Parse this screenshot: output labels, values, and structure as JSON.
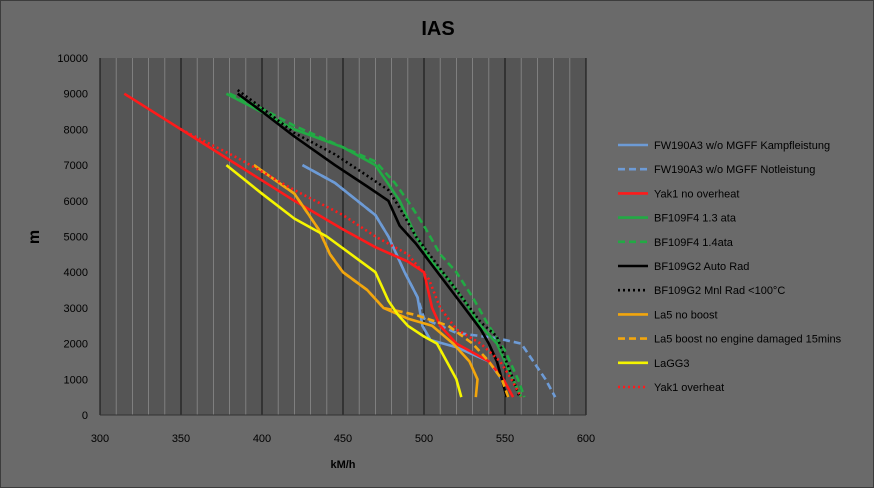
{
  "chart_data": {
    "type": "line",
    "title": "IAS",
    "xlabel": "kM/h",
    "ylabel": "m",
    "xlim": [
      300,
      600
    ],
    "ylim": [
      0,
      10000
    ],
    "xticks": [
      300,
      350,
      400,
      450,
      500,
      550,
      600
    ],
    "yticks": [
      0,
      1000,
      2000,
      3000,
      4000,
      5000,
      6000,
      7000,
      8000,
      9000,
      10000
    ],
    "grid": "vertical lines every 10 km/h, darker every 50 km/h",
    "legend_position": "right",
    "plot_background": "#555555",
    "series": [
      {
        "name": "FW190A3 w/o MGFF  Kampfleistung",
        "color": "#6d9bd6",
        "dash": "solid",
        "points": [
          [
            425,
            7000
          ],
          [
            445,
            6500
          ],
          [
            470,
            5600
          ],
          [
            478,
            5000
          ],
          [
            488,
            4000
          ],
          [
            496,
            3300
          ],
          [
            499,
            2500
          ],
          [
            504,
            2100
          ],
          [
            520,
            1900
          ],
          [
            540,
            1500
          ],
          [
            548,
            1000
          ],
          [
            551,
            500
          ]
        ]
      },
      {
        "name": "FW190A3 w/o MGFF  Notleistung",
        "color": "#6d9bd6",
        "dash": "dash",
        "points": [
          [
            425,
            7000
          ],
          [
            445,
            6500
          ],
          [
            470,
            5600
          ],
          [
            478,
            5000
          ],
          [
            488,
            4000
          ],
          [
            496,
            3300
          ],
          [
            500,
            2700
          ],
          [
            520,
            2300
          ],
          [
            545,
            2150
          ],
          [
            560,
            2000
          ],
          [
            575,
            1000
          ],
          [
            581,
            500
          ]
        ]
      },
      {
        "name": "Yak1 no overheat",
        "color": "#ff1a1a",
        "dash": "solid",
        "points": [
          [
            315,
            9000
          ],
          [
            350,
            8000
          ],
          [
            385,
            7000
          ],
          [
            420,
            6000
          ],
          [
            450,
            5200
          ],
          [
            470,
            4700
          ],
          [
            490,
            4300
          ],
          [
            500,
            4000
          ],
          [
            505,
            3000
          ],
          [
            510,
            2500
          ],
          [
            520,
            2000
          ],
          [
            540,
            1500
          ],
          [
            549,
            1000
          ],
          [
            555,
            500
          ]
        ]
      },
      {
        "name": "BF109F4 1.3 ata",
        "color": "#22aa44",
        "dash": "solid",
        "points": [
          [
            378,
            9000
          ],
          [
            395,
            8600
          ],
          [
            420,
            8000
          ],
          [
            450,
            7500
          ],
          [
            470,
            7000
          ],
          [
            485,
            6000
          ],
          [
            495,
            5000
          ],
          [
            505,
            4300
          ],
          [
            515,
            3800
          ],
          [
            525,
            3200
          ],
          [
            535,
            2500
          ],
          [
            545,
            2000
          ],
          [
            550,
            1500
          ],
          [
            555,
            1000
          ],
          [
            560,
            500
          ]
        ]
      },
      {
        "name": "BF109F4 1.4ata",
        "color": "#22aa44",
        "dash": "dash",
        "points": [
          [
            380,
            9000
          ],
          [
            395,
            8700
          ],
          [
            420,
            8100
          ],
          [
            445,
            7600
          ],
          [
            470,
            7100
          ],
          [
            482,
            6500
          ],
          [
            490,
            6000
          ],
          [
            500,
            5300
          ],
          [
            510,
            4500
          ],
          [
            520,
            4000
          ],
          [
            530,
            3300
          ],
          [
            540,
            2500
          ],
          [
            550,
            1800
          ],
          [
            558,
            1000
          ],
          [
            562,
            500
          ]
        ]
      },
      {
        "name": "BF109G2 Auto Rad",
        "color": "#000000",
        "dash": "solid",
        "points": [
          [
            385,
            9000
          ],
          [
            400,
            8500
          ],
          [
            420,
            7800
          ],
          [
            445,
            7000
          ],
          [
            465,
            6400
          ],
          [
            478,
            6000
          ],
          [
            485,
            5300
          ],
          [
            495,
            4800
          ],
          [
            505,
            4200
          ],
          [
            515,
            3600
          ],
          [
            525,
            3000
          ],
          [
            535,
            2400
          ],
          [
            540,
            2000
          ],
          [
            545,
            1500
          ],
          [
            548,
            1000
          ],
          [
            551,
            500
          ]
        ]
      },
      {
        "name": "BF109G2 Mnl Rad <100°C",
        "color": "#000000",
        "dash": "dot",
        "points": [
          [
            385,
            9100
          ],
          [
            400,
            8600
          ],
          [
            420,
            7900
          ],
          [
            445,
            7300
          ],
          [
            465,
            6700
          ],
          [
            478,
            6300
          ],
          [
            485,
            5800
          ],
          [
            495,
            5000
          ],
          [
            505,
            4400
          ],
          [
            515,
            3800
          ],
          [
            525,
            3200
          ],
          [
            535,
            2600
          ],
          [
            545,
            2200
          ],
          [
            550,
            1600
          ],
          [
            555,
            1000
          ],
          [
            559,
            500
          ]
        ]
      },
      {
        "name": "La5 no boost",
        "color": "#f2a60d",
        "dash": "solid",
        "points": [
          [
            395,
            7000
          ],
          [
            420,
            6200
          ],
          [
            435,
            5200
          ],
          [
            442,
            4500
          ],
          [
            450,
            4000
          ],
          [
            465,
            3500
          ],
          [
            475,
            3000
          ],
          [
            490,
            2700
          ],
          [
            505,
            2500
          ],
          [
            518,
            2000
          ],
          [
            528,
            1500
          ],
          [
            533,
            1000
          ],
          [
            532,
            500
          ]
        ]
      },
      {
        "name": "La5 boost no engine damaged  15mins",
        "color": "#f2a60d",
        "dash": "dash",
        "points": [
          [
            395,
            7000
          ],
          [
            420,
            6200
          ],
          [
            435,
            5200
          ],
          [
            442,
            4500
          ],
          [
            450,
            4000
          ],
          [
            465,
            3500
          ],
          [
            475,
            3000
          ],
          [
            495,
            2800
          ],
          [
            515,
            2500
          ],
          [
            530,
            2000
          ],
          [
            540,
            1500
          ],
          [
            548,
            1000
          ],
          [
            552,
            500
          ]
        ]
      },
      {
        "name": "LaGG3",
        "color": "#f5f500",
        "dash": "solid",
        "points": [
          [
            378,
            7000
          ],
          [
            400,
            6200
          ],
          [
            420,
            5500
          ],
          [
            440,
            5000
          ],
          [
            455,
            4500
          ],
          [
            470,
            4000
          ],
          [
            478,
            3200
          ],
          [
            484,
            2800
          ],
          [
            490,
            2500
          ],
          [
            500,
            2200
          ],
          [
            508,
            2000
          ],
          [
            514,
            1500
          ],
          [
            520,
            1000
          ],
          [
            523,
            500
          ]
        ]
      },
      {
        "name": "Yak1 overheat",
        "color": "#ff1a1a",
        "dash": "dot",
        "points": [
          [
            350,
            8000
          ],
          [
            385,
            7200
          ],
          [
            420,
            6300
          ],
          [
            450,
            5600
          ],
          [
            470,
            5000
          ],
          [
            490,
            4500
          ],
          [
            503,
            3800
          ],
          [
            510,
            3000
          ],
          [
            520,
            2400
          ],
          [
            535,
            2000
          ],
          [
            547,
            1500
          ],
          [
            554,
            1000
          ],
          [
            560,
            500
          ]
        ]
      }
    ]
  }
}
